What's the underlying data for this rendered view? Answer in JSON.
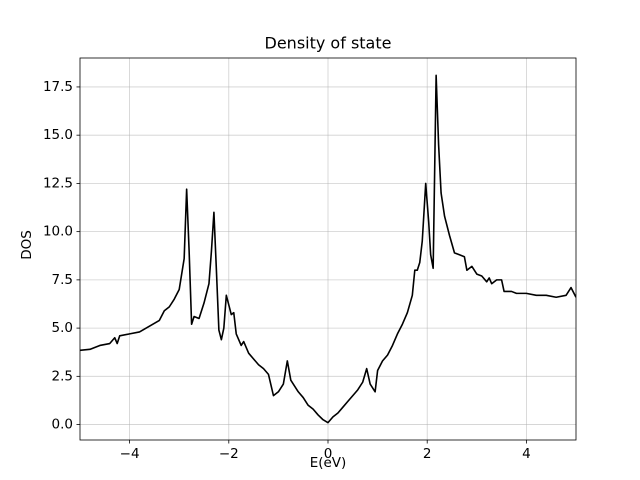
{
  "chart_data": {
    "type": "line",
    "title": "Density of state",
    "x_label": "E(eV)",
    "y_label": "DOS",
    "color": "#000000",
    "grid": true,
    "x": [
      -5,
      -4.8,
      -4.6,
      -4.4,
      -4.3,
      -4.25,
      -4.2,
      -4.0,
      -3.8,
      -3.6,
      -3.4,
      -3.3,
      -3.2,
      -3.1,
      -3.0,
      -2.9,
      -2.85,
      -2.8,
      -2.75,
      -2.7,
      -2.6,
      -2.5,
      -2.4,
      -2.35,
      -2.3,
      -2.25,
      -2.2,
      -2.15,
      -2.1,
      -2.05,
      -1.95,
      -1.9,
      -1.85,
      -1.75,
      -1.7,
      -1.6,
      -1.5,
      -1.4,
      -1.3,
      -1.2,
      -1.1,
      -1.0,
      -0.9,
      -0.82,
      -0.75,
      -0.6,
      -0.5,
      -0.4,
      -0.3,
      -0.2,
      -0.1,
      0,
      0.1,
      0.2,
      0.3,
      0.4,
      0.5,
      0.6,
      0.7,
      0.78,
      0.85,
      0.95,
      1.0,
      1.1,
      1.2,
      1.3,
      1.4,
      1.5,
      1.6,
      1.7,
      1.75,
      1.8,
      1.85,
      1.9,
      1.97,
      2.03,
      2.07,
      2.12,
      2.18,
      2.23,
      2.28,
      2.35,
      2.45,
      2.55,
      2.65,
      2.75,
      2.8,
      2.9,
      3.0,
      3.1,
      3.2,
      3.25,
      3.3,
      3.4,
      3.5,
      3.55,
      3.7,
      3.8,
      4.0,
      4.2,
      4.4,
      4.6,
      4.8,
      4.9,
      5.0
    ],
    "values": [
      3.85,
      3.9,
      4.1,
      4.2,
      4.5,
      4.2,
      4.6,
      4.7,
      4.8,
      5.1,
      5.4,
      5.9,
      6.1,
      6.5,
      7.0,
      8.6,
      12.2,
      9.0,
      5.2,
      5.6,
      5.5,
      6.3,
      7.3,
      9.0,
      11.0,
      8.0,
      4.9,
      4.4,
      5.0,
      6.7,
      5.7,
      5.8,
      4.7,
      4.1,
      4.3,
      3.7,
      3.4,
      3.1,
      2.9,
      2.6,
      1.5,
      1.7,
      2.1,
      3.3,
      2.3,
      1.7,
      1.4,
      1.0,
      0.8,
      0.5,
      0.25,
      0.1,
      0.4,
      0.6,
      0.9,
      1.2,
      1.5,
      1.8,
      2.2,
      2.9,
      2.1,
      1.7,
      2.8,
      3.3,
      3.6,
      4.1,
      4.7,
      5.2,
      5.8,
      6.7,
      8.0,
      8.0,
      8.4,
      9.5,
      12.5,
      10.5,
      8.8,
      8.1,
      18.1,
      14.5,
      12.0,
      10.8,
      9.8,
      8.9,
      8.8,
      8.7,
      8.0,
      8.2,
      7.8,
      7.7,
      7.4,
      7.6,
      7.3,
      7.5,
      7.5,
      6.9,
      6.9,
      6.8,
      6.8,
      6.7,
      6.7,
      6.6,
      6.7,
      7.1,
      6.6
    ],
    "xlim": [
      -5,
      5
    ],
    "xticks": [
      {
        "value": -4,
        "label": "−4"
      },
      {
        "value": -2,
        "label": "−2"
      },
      0,
      2,
      4
    ],
    "ylim": [
      -0.8,
      19.0
    ],
    "yticks": [
      {
        "value": 0,
        "label": "0.0"
      },
      2.5,
      {
        "value": 5,
        "label": "5.0"
      },
      7.5,
      {
        "value": 10,
        "label": "10.0"
      },
      12.5,
      {
        "value": 15,
        "label": "15.0"
      },
      17.5
    ]
  }
}
